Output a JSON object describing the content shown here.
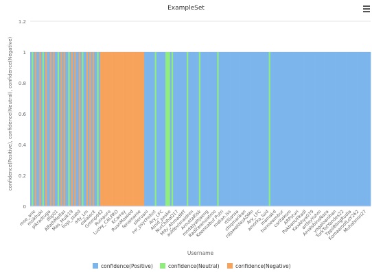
{
  "chart_data": {
    "type": "bar",
    "stacked": true,
    "title": "ExampleSet",
    "xlabel": "Username",
    "ylabel": "confidence(Positive), confidence(Neutral), confidence(Negative)",
    "ylim": [
      0,
      1.2
    ],
    "yticks": [
      "0",
      "0.2",
      "0.4",
      "0.6",
      "0.8",
      "1",
      "1.2"
    ],
    "grid": true,
    "legend_position": "bottom",
    "colors": {
      "Positive": "#7cb5ec",
      "Neutral": "#90ed7d",
      "Negative": "#f7a35c"
    },
    "x_tick_labels": [
      "mse_arie",
      "msikhuki",
      "pikradtuga",
      "iflip01",
      "AlfathMelfas",
      "Mas_Mulk19",
      "hopi_stabil",
      "ady_Lm",
      "owiaieck",
      "Gmmpd42",
      "Rumpuro",
      "Lucky_CALPRO",
      "KCarray",
      "RuanMawied",
      "fenamame",
      "sileruani",
      "mr_psychobot",
      "Ary_LFC",
      "Ainid_pesko",
      "NurChihaQ17",
      "Mdy_AhmadMT",
      "auldpvisnaidnm",
      "ArnuttaRisk",
      "mndajyahjaeng",
      "Raditwanuiatmo",
      "Keenisabuf Putri",
      "makan.iss",
      "rtlijansa",
      "chiqmarikan",
      "rdjawaldasADMn",
      "Ary_LFC",
      "amorka_luid",
      "Inamakd",
      "hermewmbur",
      "caritakom",
      "ARPsturi",
      "PakbanUPkadl",
      "KaxAhya079",
      "artleyYuhm",
      "AmalsbinaNaza",
      "yogaloanihan",
      "TurkTotYandes22",
      "TppiiBlingRudia",
      "KomaaroofLoY262",
      "Muhalsmin27"
    ],
    "series": [
      {
        "name": "confidence(Positive)",
        "values": [
          1,
          0,
          1,
          0,
          1,
          1,
          0,
          1,
          0,
          1,
          0,
          1,
          1,
          0,
          1,
          0,
          1,
          1,
          0,
          1,
          0,
          1,
          0,
          1,
          1,
          0,
          1,
          0,
          1,
          0,
          1,
          1,
          0,
          1,
          0,
          1,
          1,
          0,
          1,
          0,
          1,
          0,
          1,
          1,
          0,
          1,
          0,
          0,
          0,
          0,
          0,
          0,
          0,
          0,
          0,
          0,
          0,
          0,
          0,
          0,
          0,
          0,
          0,
          0,
          0,
          0,
          0,
          0,
          0,
          0,
          0,
          0,
          0,
          0,
          0,
          1,
          1,
          1,
          1,
          1,
          1,
          1,
          0,
          1,
          1,
          1,
          1,
          1,
          1,
          0,
          0,
          0,
          1,
          0,
          1,
          1,
          1,
          1,
          1,
          1,
          1,
          1,
          1,
          0,
          1,
          1,
          1,
          1,
          1,
          1,
          1,
          0,
          1,
          1,
          1,
          1,
          1,
          1,
          1,
          1,
          1,
          1,
          1,
          0,
          1,
          1,
          1,
          1,
          1,
          1,
          1,
          1,
          1,
          1,
          1,
          1,
          1,
          1,
          1,
          1,
          1,
          1,
          1,
          1,
          1,
          1,
          1,
          1,
          1,
          1,
          1,
          1,
          1,
          1,
          1,
          1,
          1,
          0,
          1,
          1,
          1,
          1,
          1,
          1,
          1,
          1,
          1,
          1,
          1,
          1,
          1,
          1,
          1,
          1,
          1,
          1,
          1,
          1,
          1,
          1,
          1,
          1,
          1,
          1,
          1,
          1,
          1,
          1,
          1,
          1,
          1,
          1,
          1,
          1,
          1,
          1,
          1,
          1,
          1,
          1,
          1,
          1,
          1,
          1,
          1,
          1,
          1,
          1,
          1,
          1,
          1,
          1,
          1,
          1,
          1,
          1,
          1,
          1,
          1,
          1,
          1,
          1,
          1,
          1
        ]
      },
      {
        "name": "confidence(Neutral)",
        "values": [
          0,
          1,
          0,
          0,
          0,
          0,
          0,
          0,
          1,
          0,
          0,
          0,
          0,
          0,
          0,
          0,
          0,
          0,
          1,
          0,
          0,
          0,
          0,
          0,
          0,
          1,
          0,
          0,
          0,
          0,
          0,
          0,
          0,
          0,
          1,
          0,
          0,
          0,
          0,
          0,
          0,
          0,
          0,
          0,
          1,
          0,
          0,
          0,
          0,
          0,
          0,
          0,
          0,
          0,
          0,
          0,
          0,
          0,
          0,
          0,
          0,
          0,
          0,
          0,
          0,
          0,
          0,
          0,
          0,
          0,
          0,
          0,
          0,
          0,
          0,
          0,
          0,
          0,
          0,
          0,
          0,
          0,
          1,
          0,
          0,
          0,
          0,
          0,
          0,
          1,
          1,
          1,
          0,
          1,
          0,
          0,
          0,
          0,
          0,
          0,
          0,
          0,
          0,
          1,
          0,
          0,
          0,
          0,
          0,
          0,
          0,
          1,
          0,
          0,
          0,
          0,
          0,
          0,
          0,
          0,
          0,
          0,
          0,
          1,
          0,
          0,
          0,
          0,
          0,
          0,
          0,
          0,
          0,
          0,
          0,
          0,
          0,
          0,
          0,
          0,
          0,
          0,
          0,
          0,
          0,
          0,
          0,
          0,
          0,
          0,
          0,
          0,
          0,
          0,
          0,
          0,
          0,
          1,
          0,
          0,
          0,
          0,
          0,
          0,
          0,
          0,
          0,
          0,
          0,
          0,
          0,
          0,
          0,
          0,
          0,
          0,
          0,
          0,
          0,
          0,
          0,
          0,
          0,
          0,
          0,
          0,
          0,
          0,
          0,
          0,
          0,
          0,
          0,
          0,
          0,
          0,
          0,
          0,
          0,
          0,
          0,
          0,
          0,
          0,
          0,
          0,
          0,
          0,
          0,
          0,
          0,
          0,
          0,
          0,
          0,
          0,
          0,
          0,
          0,
          0,
          0,
          0,
          0,
          0
        ]
      },
      {
        "name": "confidence(Negative)",
        "values": [
          0,
          0,
          0,
          1,
          0,
          0,
          1,
          0,
          0,
          0,
          1,
          0,
          0,
          1,
          0,
          1,
          0,
          0,
          0,
          0,
          1,
          0,
          1,
          0,
          0,
          0,
          0,
          1,
          0,
          1,
          0,
          0,
          1,
          0,
          0,
          0,
          0,
          1,
          0,
          1,
          0,
          1,
          0,
          0,
          0,
          0,
          1,
          1,
          1,
          1,
          1,
          1,
          1,
          1,
          1,
          1,
          1,
          1,
          1,
          1,
          1,
          1,
          1,
          1,
          1,
          1,
          1,
          1,
          1,
          1,
          1,
          1,
          1,
          1,
          1,
          0,
          0,
          0,
          0,
          0,
          0,
          0,
          0,
          0,
          0,
          0,
          0,
          0,
          0,
          0,
          0,
          0,
          0,
          0,
          0,
          0,
          0,
          0,
          0,
          0,
          0,
          0,
          0,
          0,
          0,
          0,
          0,
          0,
          0,
          0,
          0,
          0,
          0,
          0,
          0,
          0,
          0,
          0,
          0,
          0,
          0,
          0,
          0,
          0,
          0,
          0,
          0,
          0,
          0,
          0,
          0,
          0,
          0,
          0,
          0,
          0,
          0,
          0,
          0,
          0,
          0,
          0,
          0,
          0,
          0,
          0,
          0,
          0,
          0,
          0,
          0,
          0,
          0,
          0,
          0,
          0,
          0,
          0,
          0,
          0,
          0,
          0,
          0,
          0,
          0,
          0,
          0,
          0,
          0,
          0,
          0,
          0,
          0,
          0,
          0,
          0,
          0,
          0,
          0,
          0,
          0,
          0,
          0,
          0,
          0,
          0,
          0,
          0,
          0,
          0,
          0,
          0,
          0,
          0,
          0,
          0,
          0,
          0,
          0,
          0,
          0,
          0,
          0,
          0,
          0,
          0,
          0,
          0,
          0,
          0,
          0,
          0,
          0,
          0,
          0,
          0,
          0,
          0,
          0,
          0,
          0,
          0,
          0,
          0,
          0
        ]
      }
    ]
  },
  "menu_icon": "hamburger-icon"
}
